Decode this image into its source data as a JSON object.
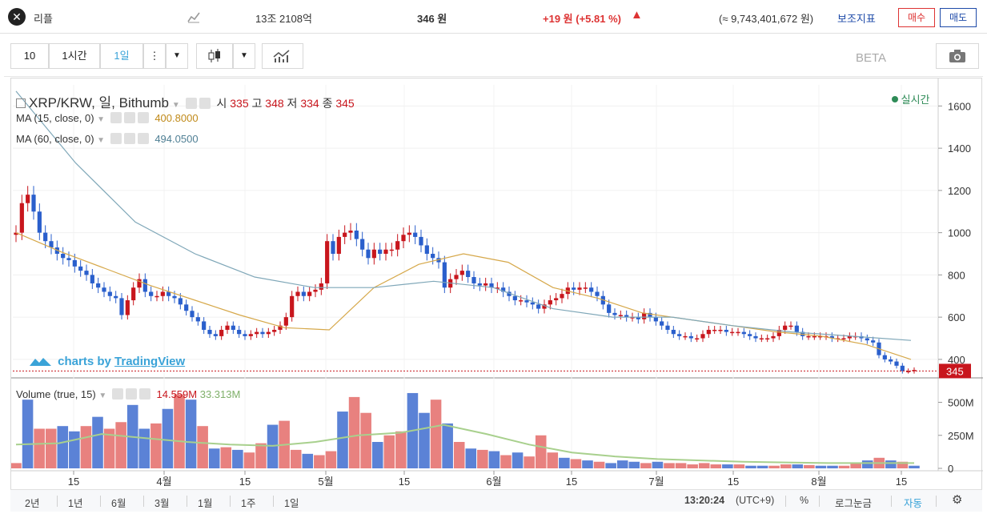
{
  "topbar": {
    "coin_name": "리플",
    "market_cap": "13조 2108억",
    "price": "346 원",
    "change": "+19 원 (+5.81 %)",
    "volume_value": "(≈ 9,743,401,672 원)",
    "indicator_label": "보조지표",
    "buy_label": "매수",
    "sell_label": "매도"
  },
  "toolbar": {
    "interval_10": "10",
    "interval_1h": "1시간",
    "interval_1d": "1일",
    "beta_label": "BETA"
  },
  "legend": {
    "symbol": "XRP/KRW, 일, Bithumb",
    "open_label": "시",
    "open": "335",
    "high_label": "고",
    "high": "348",
    "low_label": "저",
    "low": "334",
    "close_label": "종",
    "close": "345",
    "ma15_label": "MA (15, close, 0)",
    "ma15_value": "400.8000",
    "ma60_label": "MA (60, close, 0)",
    "ma60_value": "494.0500",
    "realtime_label": "실시간",
    "volume_label": "Volume (true, 15)",
    "volume_value": "14.559M",
    "volume_ma_value": "33.313M",
    "price_tag": "345",
    "watermark_prefix": "charts by",
    "watermark_brand": "TradingView"
  },
  "bottombar": {
    "ranges": [
      "2년",
      "1년",
      "6월",
      "3월",
      "1월",
      "1주",
      "1일"
    ],
    "time": "13:20:24",
    "timezone": "(UTC+9)",
    "percent": "%",
    "log": "로그눈금",
    "auto": "자동"
  },
  "colors": {
    "up": "#c8161d",
    "down": "#2a5fcc",
    "ma15": "#d6a84a",
    "ma60": "#7fa7b8",
    "vol_up": "#e8817f",
    "vol_down": "#5b82d6",
    "vol_ma": "#a8d08d"
  },
  "chart_data": {
    "type": "candlestick",
    "price_axis_ticks": [
      "1600",
      "1400",
      "1200",
      "1000",
      "800",
      "600",
      "400"
    ],
    "volume_axis_ticks": [
      "500M",
      "250M",
      "0"
    ],
    "x_tick_labels": [
      "15",
      "4월",
      "15",
      "5월",
      "15",
      "6월",
      "15",
      "7월",
      "15",
      "8월",
      "15"
    ],
    "price_ylim": [
      320,
      1700
    ],
    "volume_ylim": [
      0,
      600
    ],
    "last_price": 345,
    "series": [
      {
        "name": "XRP/KRW",
        "values": [
          1000,
          1140,
          1180,
          1100,
          1000,
          960,
          930,
          900,
          880,
          870,
          840,
          820,
          800,
          760,
          740,
          720,
          700,
          690,
          610,
          680,
          740,
          780,
          720,
          700,
          700,
          720,
          700,
          690,
          660,
          630,
          600,
          580,
          540,
          520,
          510,
          540,
          560,
          540,
          520,
          510,
          520,
          530,
          520,
          530,
          540,
          560,
          600,
          700,
          720,
          700,
          720,
          730,
          760,
          960,
          900,
          980,
          1000,
          1010,
          970,
          920,
          880,
          920,
          900,
          920,
          920,
          960,
          990,
          1000,
          980,
          940,
          900,
          880,
          860,
          740,
          780,
          800,
          820,
          790,
          760,
          750,
          760,
          740,
          740,
          720,
          700,
          680,
          680,
          670,
          660,
          640,
          660,
          680,
          690,
          710,
          740,
          730,
          740,
          740,
          720,
          700,
          660,
          620,
          610,
          610,
          600,
          600,
          590,
          620,
          600,
          580,
          560,
          540,
          520,
          510,
          510,
          500,
          500,
          520,
          540,
          540,
          540,
          530,
          530,
          530,
          520,
          510,
          500,
          500,
          500,
          510,
          540,
          560,
          560,
          530,
          510,
          510,
          510,
          510,
          510,
          500,
          500,
          500,
          510,
          510,
          500,
          490,
          480,
          420,
          400,
          390,
          370,
          345,
          345,
          350
        ]
      },
      {
        "name": "MA (15, close, 0)",
        "values": [
          1000,
          910,
          830,
          750,
          680,
          610,
          550,
          540,
          740,
          850,
          900,
          860,
          740,
          690,
          620,
          590,
          560,
          530,
          510,
          470,
          400
        ]
      },
      {
        "name": "MA (60, close, 0)",
        "values": [
          1670,
          1330,
          1050,
          900,
          790,
          740,
          740,
          770,
          740,
          640,
          600,
          600,
          560,
          530,
          510,
          490
        ]
      },
      {
        "name": "Volume (true, 15)",
        "values": [
          40,
          520,
          300,
          300,
          320,
          280,
          320,
          390,
          300,
          350,
          480,
          300,
          340,
          450,
          560,
          520,
          320,
          150,
          160,
          140,
          120,
          190,
          330,
          360,
          140,
          110,
          100,
          130,
          430,
          540,
          420,
          200,
          250,
          280,
          570,
          420,
          520,
          340,
          200,
          150,
          140,
          130,
          100,
          120,
          90,
          250,
          120,
          80,
          70,
          60,
          50,
          40,
          60,
          50,
          40,
          50,
          40,
          40,
          30,
          40,
          30,
          30,
          30,
          20,
          20,
          20,
          30,
          30,
          25,
          20,
          20,
          20,
          40,
          60,
          80,
          60,
          50,
          20
        ]
      }
    ]
  }
}
